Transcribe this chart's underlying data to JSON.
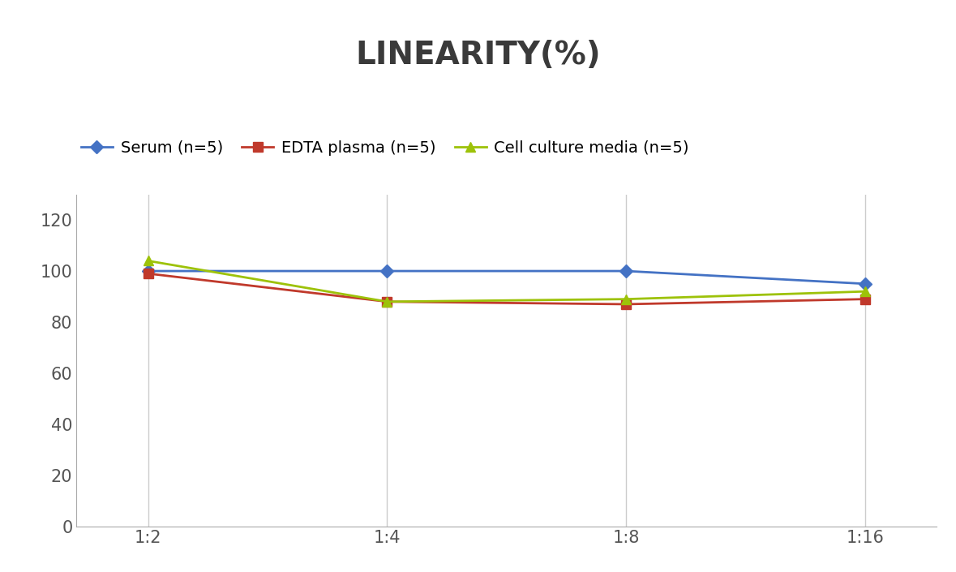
{
  "title": "LINEARITY(%)",
  "title_fontsize": 28,
  "title_fontweight": "bold",
  "x_labels": [
    "1:2",
    "1:4",
    "1:8",
    "1:16"
  ],
  "x_positions": [
    0,
    1,
    2,
    3
  ],
  "series": [
    {
      "label": "Serum (n=5)",
      "values": [
        100,
        100,
        100,
        95
      ],
      "color": "#4472C4",
      "marker": "D",
      "markersize": 8,
      "linewidth": 2
    },
    {
      "label": "EDTA plasma (n=5)",
      "values": [
        99,
        88,
        87,
        89
      ],
      "color": "#C0392B",
      "marker": "s",
      "markersize": 8,
      "linewidth": 2
    },
    {
      "label": "Cell culture media (n=5)",
      "values": [
        104,
        88,
        89,
        92
      ],
      "color": "#9DC209",
      "marker": "^",
      "markersize": 9,
      "linewidth": 2
    }
  ],
  "ylim": [
    0,
    130
  ],
  "yticks": [
    0,
    20,
    40,
    60,
    80,
    100,
    120
  ],
  "background_color": "#ffffff",
  "grid_color": "#cccccc",
  "legend_fontsize": 14,
  "tick_fontsize": 15,
  "title_color": "#3a3a3a"
}
